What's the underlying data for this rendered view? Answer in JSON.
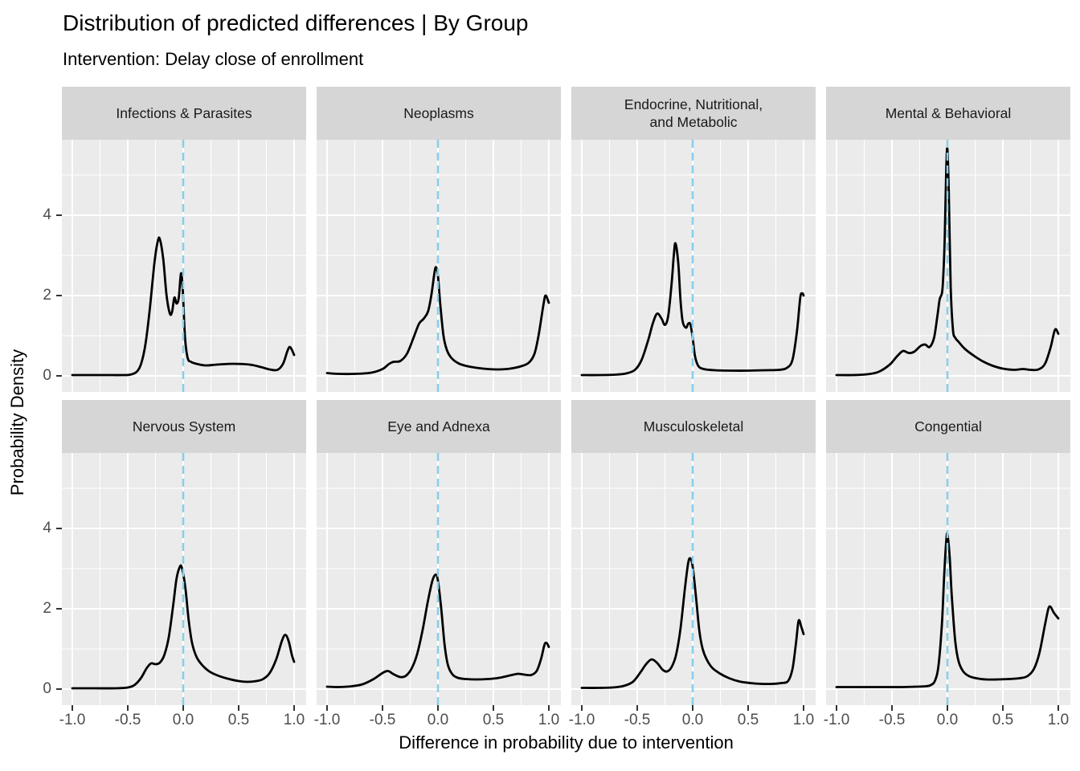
{
  "header": {
    "title": "Distribution of predicted differences | By Group",
    "subtitle": "Intervention: Delay close of enrollment"
  },
  "style": {
    "panel_bg": "#EBEBEB",
    "strip_bg": "#D6D6D6",
    "grid_color": "#FFFFFF",
    "curve_color": "#000000",
    "reference_line_color": "#87CEEB",
    "tick_text_color": "#4D4D4D",
    "tick_mark_color": "#333333"
  },
  "chart_data": {
    "type": "line",
    "title": "Distribution of predicted differences | By Group",
    "subtitle": "Intervention: Delay close of enrollment",
    "xlabel": "Difference in probability due to intervention",
    "ylabel": "Probability Density",
    "x_ticks": [
      -1.0,
      -0.5,
      0.0,
      0.5,
      1.0
    ],
    "x_tick_labels": [
      "-1.0",
      "-0.5",
      "0.0",
      "0.5",
      "1.0"
    ],
    "x_minor_ticks": [
      -0.75,
      -0.25,
      0.25,
      0.75
    ],
    "y_ticks": [
      0,
      2,
      4
    ],
    "y_tick_labels": [
      "0",
      "2",
      "4"
    ],
    "y_minor_ticks": [
      1,
      3,
      5
    ],
    "xlim": [
      -1.09,
      1.11
    ],
    "ylim": [
      -0.4,
      5.88
    ],
    "grid": true,
    "legend": "none",
    "facet_layout": {
      "rows": 2,
      "cols": 4
    },
    "reference_line": {
      "x": 0.0,
      "style": "dashed",
      "color": "#87CEEB"
    },
    "facets": [
      {
        "label": "Infections & Parasites",
        "row": 0,
        "col": 0,
        "points": [
          [
            -1,
            0.02
          ],
          [
            -0.7,
            0.02
          ],
          [
            -0.55,
            0.02
          ],
          [
            -0.48,
            0.03
          ],
          [
            -0.42,
            0.1
          ],
          [
            -0.38,
            0.3
          ],
          [
            -0.34,
            0.8
          ],
          [
            -0.3,
            1.7
          ],
          [
            -0.26,
            2.8
          ],
          [
            -0.23,
            3.35
          ],
          [
            -0.21,
            3.4
          ],
          [
            -0.18,
            2.9
          ],
          [
            -0.15,
            2.0
          ],
          [
            -0.12,
            1.55
          ],
          [
            -0.1,
            1.6
          ],
          [
            -0.08,
            1.95
          ],
          [
            -0.06,
            1.8
          ],
          [
            -0.04,
            1.95
          ],
          [
            -0.02,
            2.55
          ],
          [
            -0.005,
            2.2
          ],
          [
            0.015,
            1.0
          ],
          [
            0.04,
            0.45
          ],
          [
            0.07,
            0.35
          ],
          [
            0.12,
            0.3
          ],
          [
            0.2,
            0.26
          ],
          [
            0.3,
            0.28
          ],
          [
            0.45,
            0.3
          ],
          [
            0.6,
            0.28
          ],
          [
            0.7,
            0.22
          ],
          [
            0.78,
            0.16
          ],
          [
            0.85,
            0.15
          ],
          [
            0.9,
            0.3
          ],
          [
            0.94,
            0.62
          ],
          [
            0.96,
            0.72
          ],
          [
            0.98,
            0.65
          ],
          [
            1,
            0.52
          ]
        ]
      },
      {
        "label": "Neoplasms",
        "row": 0,
        "col": 1,
        "points": [
          [
            -1,
            0.07
          ],
          [
            -0.9,
            0.05
          ],
          [
            -0.75,
            0.05
          ],
          [
            -0.6,
            0.08
          ],
          [
            -0.5,
            0.17
          ],
          [
            -0.44,
            0.3
          ],
          [
            -0.4,
            0.35
          ],
          [
            -0.34,
            0.37
          ],
          [
            -0.28,
            0.55
          ],
          [
            -0.22,
            0.95
          ],
          [
            -0.17,
            1.3
          ],
          [
            -0.13,
            1.42
          ],
          [
            -0.09,
            1.6
          ],
          [
            -0.06,
            2.0
          ],
          [
            -0.03,
            2.6
          ],
          [
            -0.015,
            2.7
          ],
          [
            0,
            2.5
          ],
          [
            0.02,
            1.8
          ],
          [
            0.05,
            1.0
          ],
          [
            0.08,
            0.65
          ],
          [
            0.12,
            0.45
          ],
          [
            0.18,
            0.32
          ],
          [
            0.25,
            0.25
          ],
          [
            0.35,
            0.2
          ],
          [
            0.45,
            0.17
          ],
          [
            0.55,
            0.16
          ],
          [
            0.65,
            0.18
          ],
          [
            0.75,
            0.24
          ],
          [
            0.82,
            0.33
          ],
          [
            0.87,
            0.55
          ],
          [
            0.91,
            1.05
          ],
          [
            0.95,
            1.75
          ],
          [
            0.97,
            2.0
          ],
          [
            1,
            1.82
          ]
        ]
      },
      {
        "label": "Endocrine, Nutritional,\nand Metabolic",
        "row": 0,
        "col": 2,
        "points": [
          [
            -1,
            0.02
          ],
          [
            -0.85,
            0.02
          ],
          [
            -0.7,
            0.03
          ],
          [
            -0.6,
            0.06
          ],
          [
            -0.52,
            0.15
          ],
          [
            -0.46,
            0.4
          ],
          [
            -0.4,
            0.9
          ],
          [
            -0.36,
            1.3
          ],
          [
            -0.32,
            1.55
          ],
          [
            -0.28,
            1.42
          ],
          [
            -0.25,
            1.27
          ],
          [
            -0.22,
            1.5
          ],
          [
            -0.19,
            2.3
          ],
          [
            -0.17,
            3.0
          ],
          [
            -0.155,
            3.3
          ],
          [
            -0.13,
            2.8
          ],
          [
            -0.11,
            1.9
          ],
          [
            -0.09,
            1.35
          ],
          [
            -0.06,
            1.2
          ],
          [
            -0.04,
            1.3
          ],
          [
            -0.02,
            1.28
          ],
          [
            0,
            0.95
          ],
          [
            0.02,
            0.5
          ],
          [
            0.05,
            0.25
          ],
          [
            0.1,
            0.17
          ],
          [
            0.2,
            0.14
          ],
          [
            0.35,
            0.13
          ],
          [
            0.5,
            0.13
          ],
          [
            0.65,
            0.14
          ],
          [
            0.78,
            0.15
          ],
          [
            0.85,
            0.2
          ],
          [
            0.9,
            0.4
          ],
          [
            0.94,
            1.1
          ],
          [
            0.97,
            1.95
          ],
          [
            0.99,
            2.05
          ],
          [
            1,
            2.0
          ]
        ]
      },
      {
        "label": "Mental & Behavioral",
        "row": 0,
        "col": 3,
        "points": [
          [
            -1,
            0.02
          ],
          [
            -0.85,
            0.02
          ],
          [
            -0.72,
            0.04
          ],
          [
            -0.62,
            0.1
          ],
          [
            -0.52,
            0.28
          ],
          [
            -0.45,
            0.5
          ],
          [
            -0.4,
            0.62
          ],
          [
            -0.35,
            0.57
          ],
          [
            -0.3,
            0.6
          ],
          [
            -0.24,
            0.75
          ],
          [
            -0.2,
            0.78
          ],
          [
            -0.16,
            0.72
          ],
          [
            -0.12,
            0.95
          ],
          [
            -0.09,
            1.5
          ],
          [
            -0.07,
            1.9
          ],
          [
            -0.05,
            2.05
          ],
          [
            -0.04,
            2.35
          ],
          [
            -0.025,
            3.4
          ],
          [
            -0.01,
            5.2
          ],
          [
            0,
            5.65
          ],
          [
            0.012,
            4.6
          ],
          [
            0.03,
            2.2
          ],
          [
            0.05,
            1.15
          ],
          [
            0.07,
            0.95
          ],
          [
            0.1,
            0.85
          ],
          [
            0.14,
            0.72
          ],
          [
            0.18,
            0.62
          ],
          [
            0.25,
            0.48
          ],
          [
            0.32,
            0.36
          ],
          [
            0.4,
            0.26
          ],
          [
            0.5,
            0.18
          ],
          [
            0.6,
            0.15
          ],
          [
            0.68,
            0.17
          ],
          [
            0.75,
            0.15
          ],
          [
            0.82,
            0.16
          ],
          [
            0.88,
            0.3
          ],
          [
            0.93,
            0.7
          ],
          [
            0.97,
            1.15
          ],
          [
            1,
            1.05
          ]
        ]
      },
      {
        "label": "Nervous System",
        "row": 1,
        "col": 0,
        "points": [
          [
            -1,
            0.02
          ],
          [
            -0.8,
            0.02
          ],
          [
            -0.6,
            0.02
          ],
          [
            -0.5,
            0.04
          ],
          [
            -0.44,
            0.1
          ],
          [
            -0.38,
            0.28
          ],
          [
            -0.33,
            0.52
          ],
          [
            -0.29,
            0.64
          ],
          [
            -0.25,
            0.62
          ],
          [
            -0.21,
            0.66
          ],
          [
            -0.17,
            0.85
          ],
          [
            -0.13,
            1.3
          ],
          [
            -0.09,
            2.1
          ],
          [
            -0.06,
            2.75
          ],
          [
            -0.03,
            3.05
          ],
          [
            -0.01,
            3.0
          ],
          [
            0.02,
            2.5
          ],
          [
            0.05,
            1.7
          ],
          [
            0.08,
            1.15
          ],
          [
            0.12,
            0.8
          ],
          [
            0.17,
            0.6
          ],
          [
            0.23,
            0.45
          ],
          [
            0.3,
            0.35
          ],
          [
            0.4,
            0.26
          ],
          [
            0.5,
            0.2
          ],
          [
            0.58,
            0.18
          ],
          [
            0.66,
            0.2
          ],
          [
            0.72,
            0.25
          ],
          [
            0.78,
            0.4
          ],
          [
            0.84,
            0.75
          ],
          [
            0.89,
            1.2
          ],
          [
            0.92,
            1.35
          ],
          [
            0.95,
            1.2
          ],
          [
            0.98,
            0.85
          ],
          [
            1,
            0.68
          ]
        ]
      },
      {
        "label": "Eye and Adnexa",
        "row": 1,
        "col": 1,
        "points": [
          [
            -1,
            0.06
          ],
          [
            -0.9,
            0.05
          ],
          [
            -0.78,
            0.07
          ],
          [
            -0.68,
            0.12
          ],
          [
            -0.58,
            0.25
          ],
          [
            -0.5,
            0.4
          ],
          [
            -0.45,
            0.45
          ],
          [
            -0.4,
            0.37
          ],
          [
            -0.34,
            0.3
          ],
          [
            -0.29,
            0.33
          ],
          [
            -0.24,
            0.5
          ],
          [
            -0.19,
            0.85
          ],
          [
            -0.14,
            1.45
          ],
          [
            -0.09,
            2.2
          ],
          [
            -0.05,
            2.7
          ],
          [
            -0.02,
            2.85
          ],
          [
            0,
            2.7
          ],
          [
            0.03,
            2.0
          ],
          [
            0.06,
            1.1
          ],
          [
            0.09,
            0.6
          ],
          [
            0.13,
            0.37
          ],
          [
            0.18,
            0.28
          ],
          [
            0.25,
            0.25
          ],
          [
            0.35,
            0.24
          ],
          [
            0.45,
            0.25
          ],
          [
            0.55,
            0.28
          ],
          [
            0.65,
            0.34
          ],
          [
            0.72,
            0.38
          ],
          [
            0.78,
            0.36
          ],
          [
            0.84,
            0.35
          ],
          [
            0.89,
            0.45
          ],
          [
            0.93,
            0.75
          ],
          [
            0.96,
            1.1
          ],
          [
            0.98,
            1.15
          ],
          [
            1,
            1.05
          ]
        ]
      },
      {
        "label": "Musculoskeletal",
        "row": 1,
        "col": 2,
        "points": [
          [
            -1,
            0.03
          ],
          [
            -0.85,
            0.03
          ],
          [
            -0.72,
            0.04
          ],
          [
            -0.62,
            0.08
          ],
          [
            -0.54,
            0.18
          ],
          [
            -0.47,
            0.42
          ],
          [
            -0.42,
            0.62
          ],
          [
            -0.37,
            0.74
          ],
          [
            -0.32,
            0.65
          ],
          [
            -0.27,
            0.48
          ],
          [
            -0.23,
            0.44
          ],
          [
            -0.19,
            0.55
          ],
          [
            -0.15,
            0.85
          ],
          [
            -0.11,
            1.5
          ],
          [
            -0.07,
            2.5
          ],
          [
            -0.04,
            3.15
          ],
          [
            -0.02,
            3.25
          ],
          [
            0,
            3.05
          ],
          [
            0.03,
            2.3
          ],
          [
            0.06,
            1.45
          ],
          [
            0.09,
            1.0
          ],
          [
            0.13,
            0.72
          ],
          [
            0.18,
            0.52
          ],
          [
            0.25,
            0.38
          ],
          [
            0.33,
            0.27
          ],
          [
            0.42,
            0.19
          ],
          [
            0.52,
            0.15
          ],
          [
            0.62,
            0.13
          ],
          [
            0.72,
            0.13
          ],
          [
            0.8,
            0.15
          ],
          [
            0.86,
            0.2
          ],
          [
            0.9,
            0.5
          ],
          [
            0.93,
            1.1
          ],
          [
            0.955,
            1.7
          ],
          [
            0.98,
            1.55
          ],
          [
            1,
            1.37
          ]
        ]
      },
      {
        "label": "Congential",
        "row": 1,
        "col": 3,
        "points": [
          [
            -1,
            0.05
          ],
          [
            -0.85,
            0.05
          ],
          [
            -0.7,
            0.05
          ],
          [
            -0.55,
            0.05
          ],
          [
            -0.4,
            0.05
          ],
          [
            -0.28,
            0.06
          ],
          [
            -0.2,
            0.07
          ],
          [
            -0.15,
            0.1
          ],
          [
            -0.11,
            0.22
          ],
          [
            -0.08,
            0.6
          ],
          [
            -0.05,
            1.6
          ],
          [
            -0.03,
            2.8
          ],
          [
            -0.01,
            3.7
          ],
          [
            0,
            3.85
          ],
          [
            0.02,
            3.3
          ],
          [
            0.04,
            2.3
          ],
          [
            0.07,
            1.2
          ],
          [
            0.1,
            0.7
          ],
          [
            0.14,
            0.45
          ],
          [
            0.19,
            0.33
          ],
          [
            0.26,
            0.27
          ],
          [
            0.35,
            0.24
          ],
          [
            0.45,
            0.24
          ],
          [
            0.55,
            0.25
          ],
          [
            0.65,
            0.27
          ],
          [
            0.72,
            0.32
          ],
          [
            0.78,
            0.5
          ],
          [
            0.83,
            0.9
          ],
          [
            0.88,
            1.6
          ],
          [
            0.91,
            2.0
          ],
          [
            0.93,
            2.05
          ],
          [
            0.96,
            1.9
          ],
          [
            1,
            1.76
          ]
        ]
      }
    ]
  }
}
